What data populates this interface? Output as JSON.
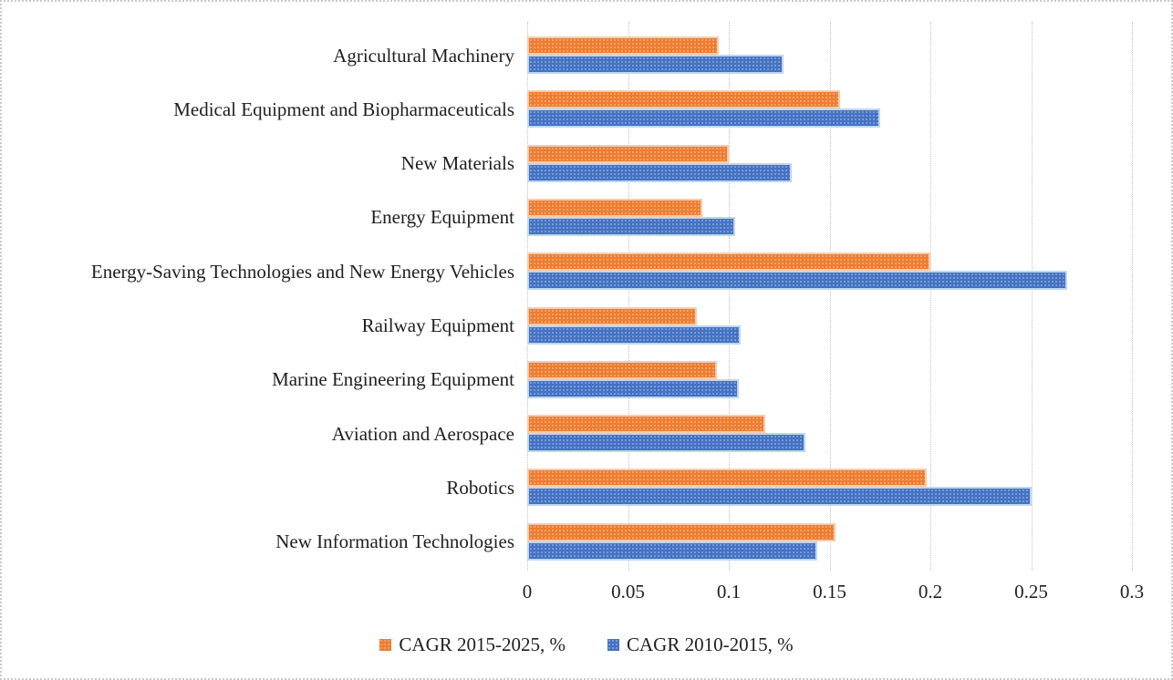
{
  "chart_data": {
    "type": "bar",
    "orientation": "horizontal",
    "title": "",
    "xlabel": "",
    "ylabel": "",
    "categories": [
      "Agricultural Machinery",
      "Medical Equipment and Biopharmaceuticals",
      "New Materials",
      "Energy Equipment",
      "Energy-Saving Technologies and New Energy Vehicles",
      "Railway Equipment",
      "Marine Engineering Equipment",
      "Aviation and Aerospace",
      "Robotics",
      "New Information Technologies"
    ],
    "series": [
      {
        "name": "CAGR 2015-2025, %",
        "color": "#ED7D31",
        "border_color": "#F8CBAD",
        "values": [
          0.095,
          0.155,
          0.1,
          0.087,
          0.2,
          0.084,
          0.094,
          0.118,
          0.198,
          0.153
        ]
      },
      {
        "name": "CAGR 2010-2015, %",
        "color": "#4472C4",
        "border_color": "#BDD7EE",
        "values": [
          0.127,
          0.175,
          0.131,
          0.103,
          0.268,
          0.106,
          0.105,
          0.138,
          0.25,
          0.144
        ]
      }
    ],
    "xlim": [
      0,
      0.3
    ],
    "x_ticks": [
      0,
      0.05,
      0.1,
      0.15,
      0.2,
      0.25,
      0.3
    ],
    "x_tick_labels": [
      "0",
      "0.05",
      "0.1",
      "0.15",
      "0.2",
      "0.25",
      "0.3"
    ],
    "grid": "vertical-dotted",
    "gridline_color": "#C3C3C3",
    "text_color": "#1F1F1F",
    "legend_position": "bottom"
  }
}
